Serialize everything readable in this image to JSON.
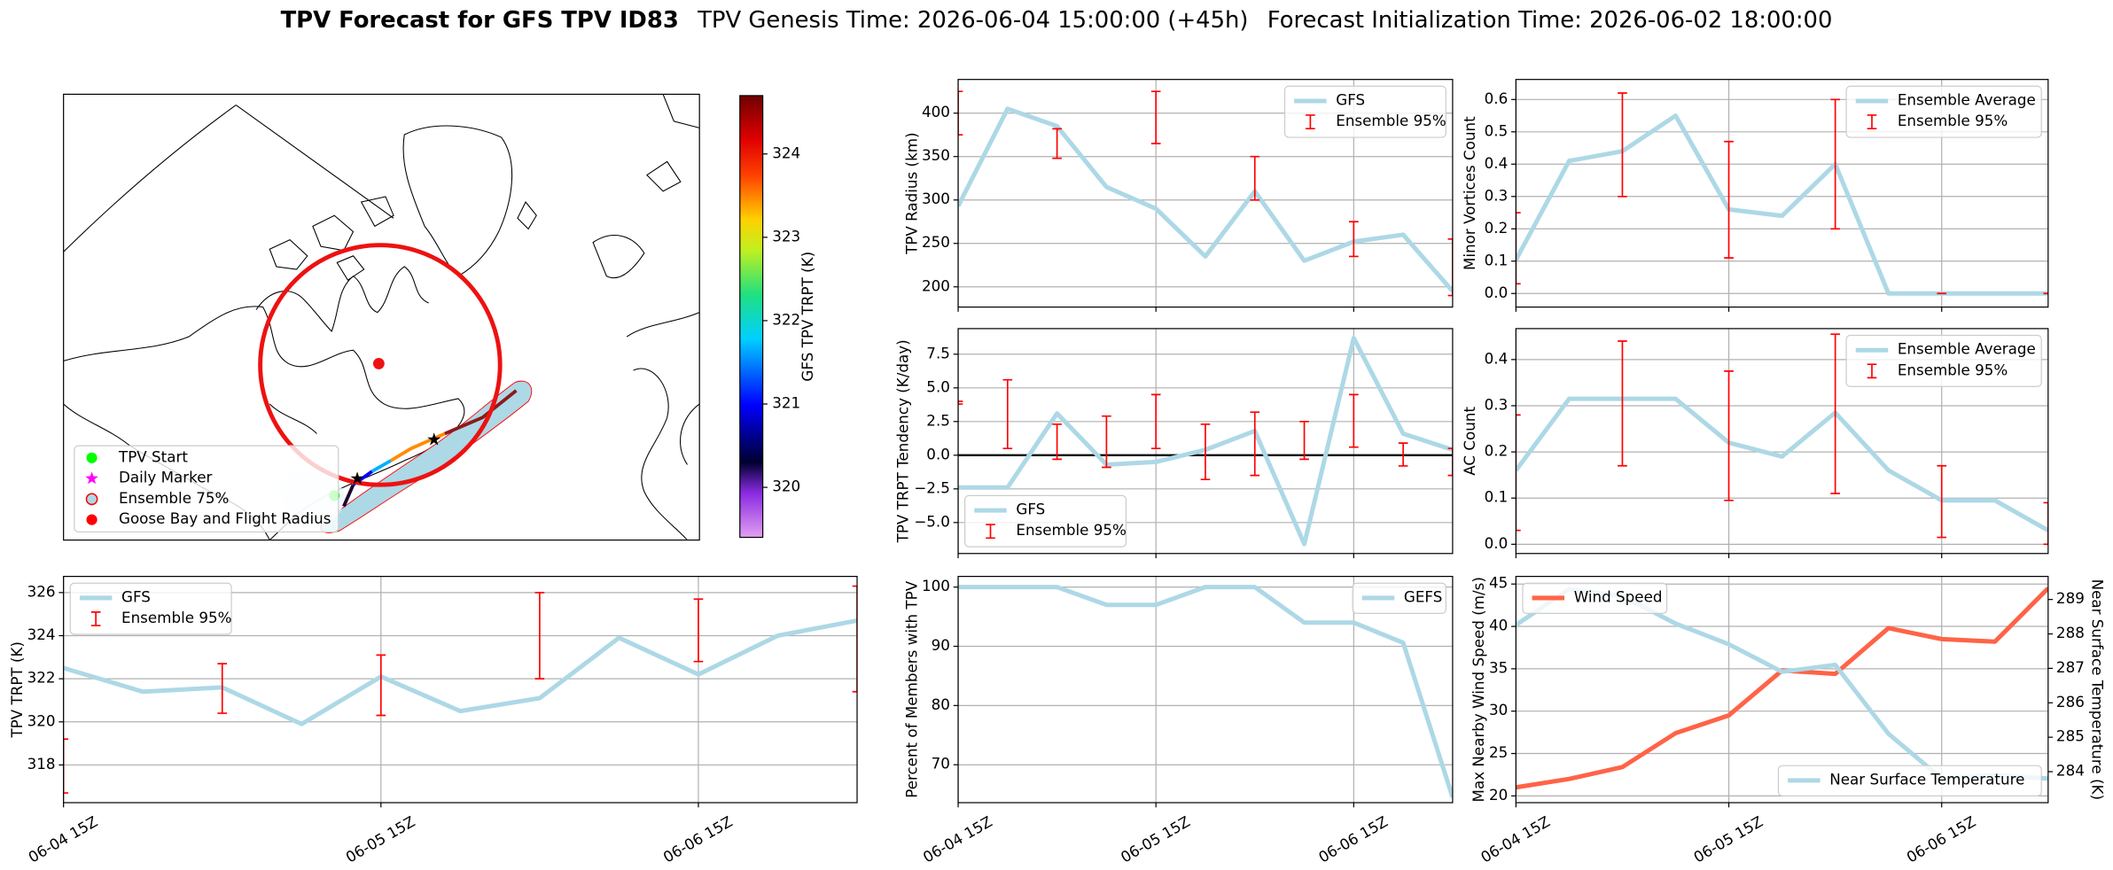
{
  "suptitle": {
    "name": "TPV Forecast for GFS TPV ID83",
    "genesis": "TPV Genesis Time: 2026-06-04 15:00:00 (+45h)",
    "init": "Forecast Initialization Time: 2026-06-02 18:00:00"
  },
  "map": {
    "colorbar": {
      "label": "GFS TPV TRPT (K)",
      "lim": [
        319.4,
        324.7
      ],
      "ticks": [
        320,
        321,
        322,
        323,
        324
      ]
    },
    "legend": [
      {
        "name": "TPV Start",
        "marker": "circle",
        "color": "#00ff00"
      },
      {
        "name": "Daily Marker",
        "marker": "star",
        "color": "#ff00ff"
      },
      {
        "name": "Ensemble 75%",
        "marker": "circle",
        "color": "#add8e6",
        "edgecolor": "#ff0000"
      },
      {
        "name": "Goose Bay and Flight Radius",
        "marker": "circle",
        "color": "#ff0000"
      }
    ]
  },
  "chart_data": [
    {
      "type": "line",
      "ylabel": "TPV Radius (km)",
      "x": [
        "06-04 15Z",
        "06-04 21Z",
        "06-05 03Z",
        "06-05 09Z",
        "06-05 15Z",
        "06-05 21Z",
        "06-06 03Z",
        "06-06 09Z",
        "06-06 15Z",
        "06-06 21Z",
        "06-07 03Z"
      ],
      "xticks": [
        "06-04 15Z",
        "06-05 15Z",
        "06-06 15Z"
      ],
      "xtick_labels": false,
      "ylim": [
        176.7,
        438.8
      ],
      "yticks": [
        200,
        250,
        300,
        350,
        400
      ],
      "grid": true,
      "legend": "upper right",
      "series": [
        {
          "name": "GFS",
          "color": "#add8e6",
          "values": [
            293,
            405,
            385,
            315,
            290,
            235,
            310,
            230,
            252,
            260,
            195
          ]
        },
        {
          "name": "Ensemble 95%",
          "color": "#ff0000",
          "low": [
            375,
            null,
            348,
            null,
            365,
            null,
            300,
            null,
            235,
            null,
            190
          ],
          "high": [
            425,
            null,
            382,
            null,
            425,
            null,
            350,
            null,
            275,
            null,
            255
          ]
        }
      ]
    },
    {
      "type": "line",
      "ylabel": "Minor Vortices Count",
      "x": [
        "06-04 15Z",
        "06-04 21Z",
        "06-05 03Z",
        "06-05 09Z",
        "06-05 15Z",
        "06-05 21Z",
        "06-06 03Z",
        "06-06 09Z",
        "06-06 15Z",
        "06-06 21Z",
        "06-07 03Z"
      ],
      "xticks": [
        "06-04 15Z",
        "06-05 15Z",
        "06-06 15Z"
      ],
      "xtick_labels": false,
      "ylim": [
        -0.042,
        0.662
      ],
      "yticks": [
        {
          "value": 0,
          "label": "0.0"
        },
        0.1,
        0.2,
        0.3,
        0.4,
        0.5,
        0.6
      ],
      "grid": true,
      "legend": "upper right",
      "series": [
        {
          "name": "Ensemble Average",
          "color": "#add8e6",
          "values": [
            0.104,
            0.41,
            0.44,
            0.55,
            0.26,
            0.24,
            0.4,
            0,
            0,
            0,
            0
          ]
        },
        {
          "name": "Ensemble 95%",
          "color": "#ff0000",
          "low": [
            0.03,
            null,
            0.3,
            null,
            0.11,
            null,
            0.2,
            null,
            0,
            null,
            0
          ],
          "high": [
            0.25,
            null,
            0.62,
            null,
            0.47,
            null,
            0.6,
            null,
            0,
            null,
            0
          ]
        }
      ]
    },
    {
      "type": "line",
      "ylabel": "TPV TRPT Tendency (K/day)",
      "x": [
        "06-04 15Z",
        "06-04 21Z",
        "06-05 03Z",
        "06-05 09Z",
        "06-05 15Z",
        "06-05 21Z",
        "06-06 03Z",
        "06-06 09Z",
        "06-06 15Z",
        "06-06 21Z",
        "06-07 03Z"
      ],
      "xticks": [
        "06-04 15Z",
        "06-05 15Z",
        "06-06 15Z"
      ],
      "xtick_labels": false,
      "ylim": [
        -7.3,
        9.4
      ],
      "yticks": [
        {
          "value": -5,
          "label": "−5.0"
        },
        {
          "value": -2.5,
          "label": "−2.5"
        },
        {
          "value": 0,
          "label": "0.0"
        },
        2.5,
        {
          "value": 5,
          "label": "5.0"
        },
        7.5
      ],
      "grid": true,
      "legend": "lower left",
      "hline": 0,
      "series": [
        {
          "name": "GFS",
          "color": "#add8e6",
          "values": [
            -2.4,
            -2.4,
            3.1,
            -0.7,
            -0.5,
            0.4,
            1.8,
            -6.6,
            8.7,
            1.6,
            0.4
          ]
        },
        {
          "name": "Ensemble 95%",
          "color": "#ff0000",
          "low": [
            3.8,
            0.5,
            -0.3,
            -0.9,
            0.5,
            -1.8,
            -1.5,
            -0.3,
            0.6,
            -0.8,
            -1.5
          ],
          "high": [
            4.0,
            5.6,
            2.3,
            2.9,
            4.5,
            2.3,
            3.2,
            2.5,
            4.5,
            0.9,
            0.5
          ]
        }
      ]
    },
    {
      "type": "line",
      "ylabel": "AC Count",
      "x": [
        "06-04 15Z",
        "06-04 21Z",
        "06-05 03Z",
        "06-05 09Z",
        "06-05 15Z",
        "06-05 21Z",
        "06-06 03Z",
        "06-06 09Z",
        "06-06 15Z",
        "06-06 21Z",
        "06-07 03Z"
      ],
      "xticks": [
        "06-04 15Z",
        "06-05 15Z",
        "06-06 15Z"
      ],
      "xtick_labels": false,
      "ylim": [
        -0.02,
        0.467
      ],
      "yticks": [
        {
          "value": 0,
          "label": "0.0"
        },
        0.1,
        0.2,
        0.3,
        0.4
      ],
      "grid": true,
      "legend": "upper right",
      "series": [
        {
          "name": "Ensemble Average",
          "color": "#add8e6",
          "values": [
            0.16,
            0.315,
            0.315,
            0.315,
            0.22,
            0.19,
            0.285,
            0.16,
            0.095,
            0.095,
            0.03
          ]
        },
        {
          "name": "Ensemble 95%",
          "color": "#ff0000",
          "low": [
            0.03,
            null,
            0.17,
            null,
            0.095,
            null,
            0.11,
            null,
            0.015,
            null,
            0
          ],
          "high": [
            0.28,
            null,
            0.44,
            null,
            0.375,
            null,
            0.455,
            null,
            0.17,
            null,
            0.09
          ]
        }
      ]
    },
    {
      "type": "line",
      "ylabel": "TPV TRPT (K)",
      "x": [
        "06-04 15Z",
        "06-04 21Z",
        "06-05 03Z",
        "06-05 09Z",
        "06-05 15Z",
        "06-05 21Z",
        "06-06 03Z",
        "06-06 09Z",
        "06-06 15Z",
        "06-06 21Z",
        "06-07 03Z"
      ],
      "xticks": [
        "06-04 15Z",
        "06-05 15Z",
        "06-06 15Z"
      ],
      "xtick_labels": true,
      "ylim": [
        316.25,
        326.75
      ],
      "yticks": [
        318,
        320,
        322,
        324,
        326
      ],
      "grid": true,
      "legend": "upper left",
      "series": [
        {
          "name": "GFS",
          "color": "#add8e6",
          "values": [
            322.5,
            321.4,
            321.6,
            319.9,
            322.1,
            320.5,
            321.1,
            323.9,
            322.2,
            324.0,
            324.7
          ]
        },
        {
          "name": "Ensemble 95%",
          "color": "#ff0000",
          "low": [
            316.7,
            null,
            320.4,
            null,
            320.3,
            null,
            322.0,
            null,
            322.8,
            null,
            321.4
          ],
          "high": [
            319.2,
            null,
            322.7,
            null,
            323.1,
            null,
            326.0,
            null,
            325.7,
            null,
            326.3
          ]
        }
      ]
    },
    {
      "type": "line",
      "ylabel": "Percent of Members with TPV",
      "x": [
        "06-04 15Z",
        "06-04 21Z",
        "06-05 03Z",
        "06-05 09Z",
        "06-05 15Z",
        "06-05 21Z",
        "06-06 03Z",
        "06-06 09Z",
        "06-06 15Z",
        "06-06 21Z",
        "06-07 03Z"
      ],
      "xticks": [
        "06-04 15Z",
        "06-05 15Z",
        "06-06 15Z"
      ],
      "xtick_labels": true,
      "ylim": [
        63.6,
        101.8
      ],
      "yticks": [
        70,
        80,
        90,
        100
      ],
      "grid": true,
      "legend": "upper right",
      "series": [
        {
          "name": "GEFS",
          "color": "#add8e6",
          "values": [
            100,
            100,
            100,
            97,
            97,
            100,
            100,
            94,
            94,
            90.6,
            64.5
          ]
        }
      ]
    },
    {
      "type": "line",
      "ylabel": "Max Nearby Wind Speed (m/s)",
      "ycolor": "#ff6347",
      "y2label": "Near Surface Temperature (K)",
      "y2color": "#4169e1",
      "x": [
        "06-04 15Z",
        "06-04 21Z",
        "06-05 03Z",
        "06-05 09Z",
        "06-05 15Z",
        "06-05 21Z",
        "06-06 03Z",
        "06-06 09Z",
        "06-06 15Z",
        "06-06 21Z",
        "06-07 03Z"
      ],
      "xticks": [
        "06-04 15Z",
        "06-05 15Z",
        "06-06 15Z"
      ],
      "xtick_labels": true,
      "ylim": [
        19.2,
        45.9
      ],
      "yticks": [
        20,
        25,
        30,
        35,
        40,
        45
      ],
      "y2lim": [
        283.1,
        289.67
      ],
      "y2ticks": [
        284,
        285,
        286,
        287,
        288,
        289
      ],
      "grid": true,
      "series": [
        {
          "name": "Wind Speed",
          "color": "#ff6347",
          "legend": "upper left",
          "values": [
            21,
            22,
            23.4,
            27.4,
            29.5,
            34.8,
            34.4,
            39.8,
            38.5,
            38.2,
            44.5
          ]
        },
        {
          "name": "Near Surface Temperature",
          "color": "#add8e6",
          "axis": "y2",
          "legend": "lower right",
          "values": [
            288.26,
            289.3,
            289.1,
            288.3,
            287.7,
            286.9,
            287.1,
            285.1,
            283.8,
            283.9,
            283.8
          ]
        }
      ]
    }
  ]
}
